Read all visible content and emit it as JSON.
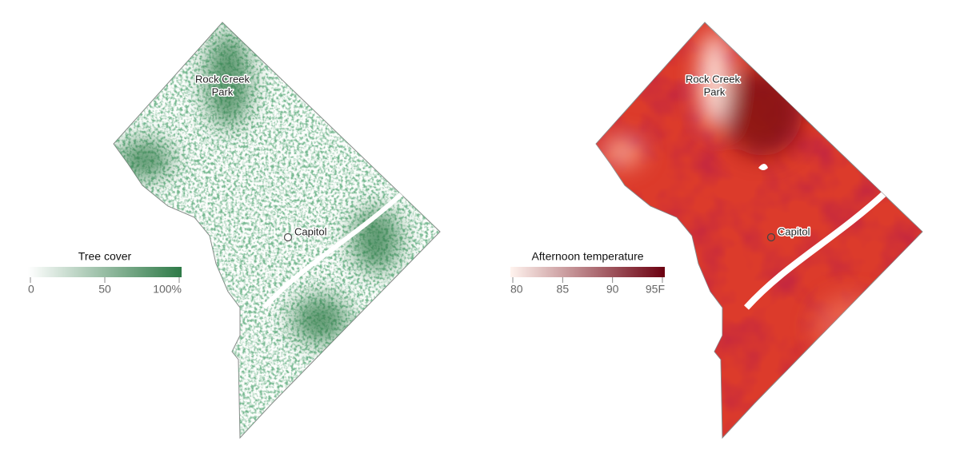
{
  "maps": [
    {
      "title": "Tree cover",
      "legend": {
        "range": [
          0,
          100
        ],
        "ticks": [
          0,
          50,
          {
            "value": 100,
            "label": "100%"
          }
        ],
        "colors": [
          "#ffffff",
          "#2e7a47"
        ]
      },
      "labels": [
        "Rock Creek",
        "Park",
        "Capitol"
      ]
    },
    {
      "title": "Afternoon temperature",
      "legend": {
        "range": [
          80,
          95
        ],
        "ticks": [
          80,
          85,
          90,
          {
            "value": 95,
            "label": "95F"
          }
        ],
        "colors": [
          "#fff3ee",
          "#6b0010"
        ]
      },
      "labels": [
        "Rock Creek",
        "Park",
        "Capitol"
      ]
    }
  ]
}
